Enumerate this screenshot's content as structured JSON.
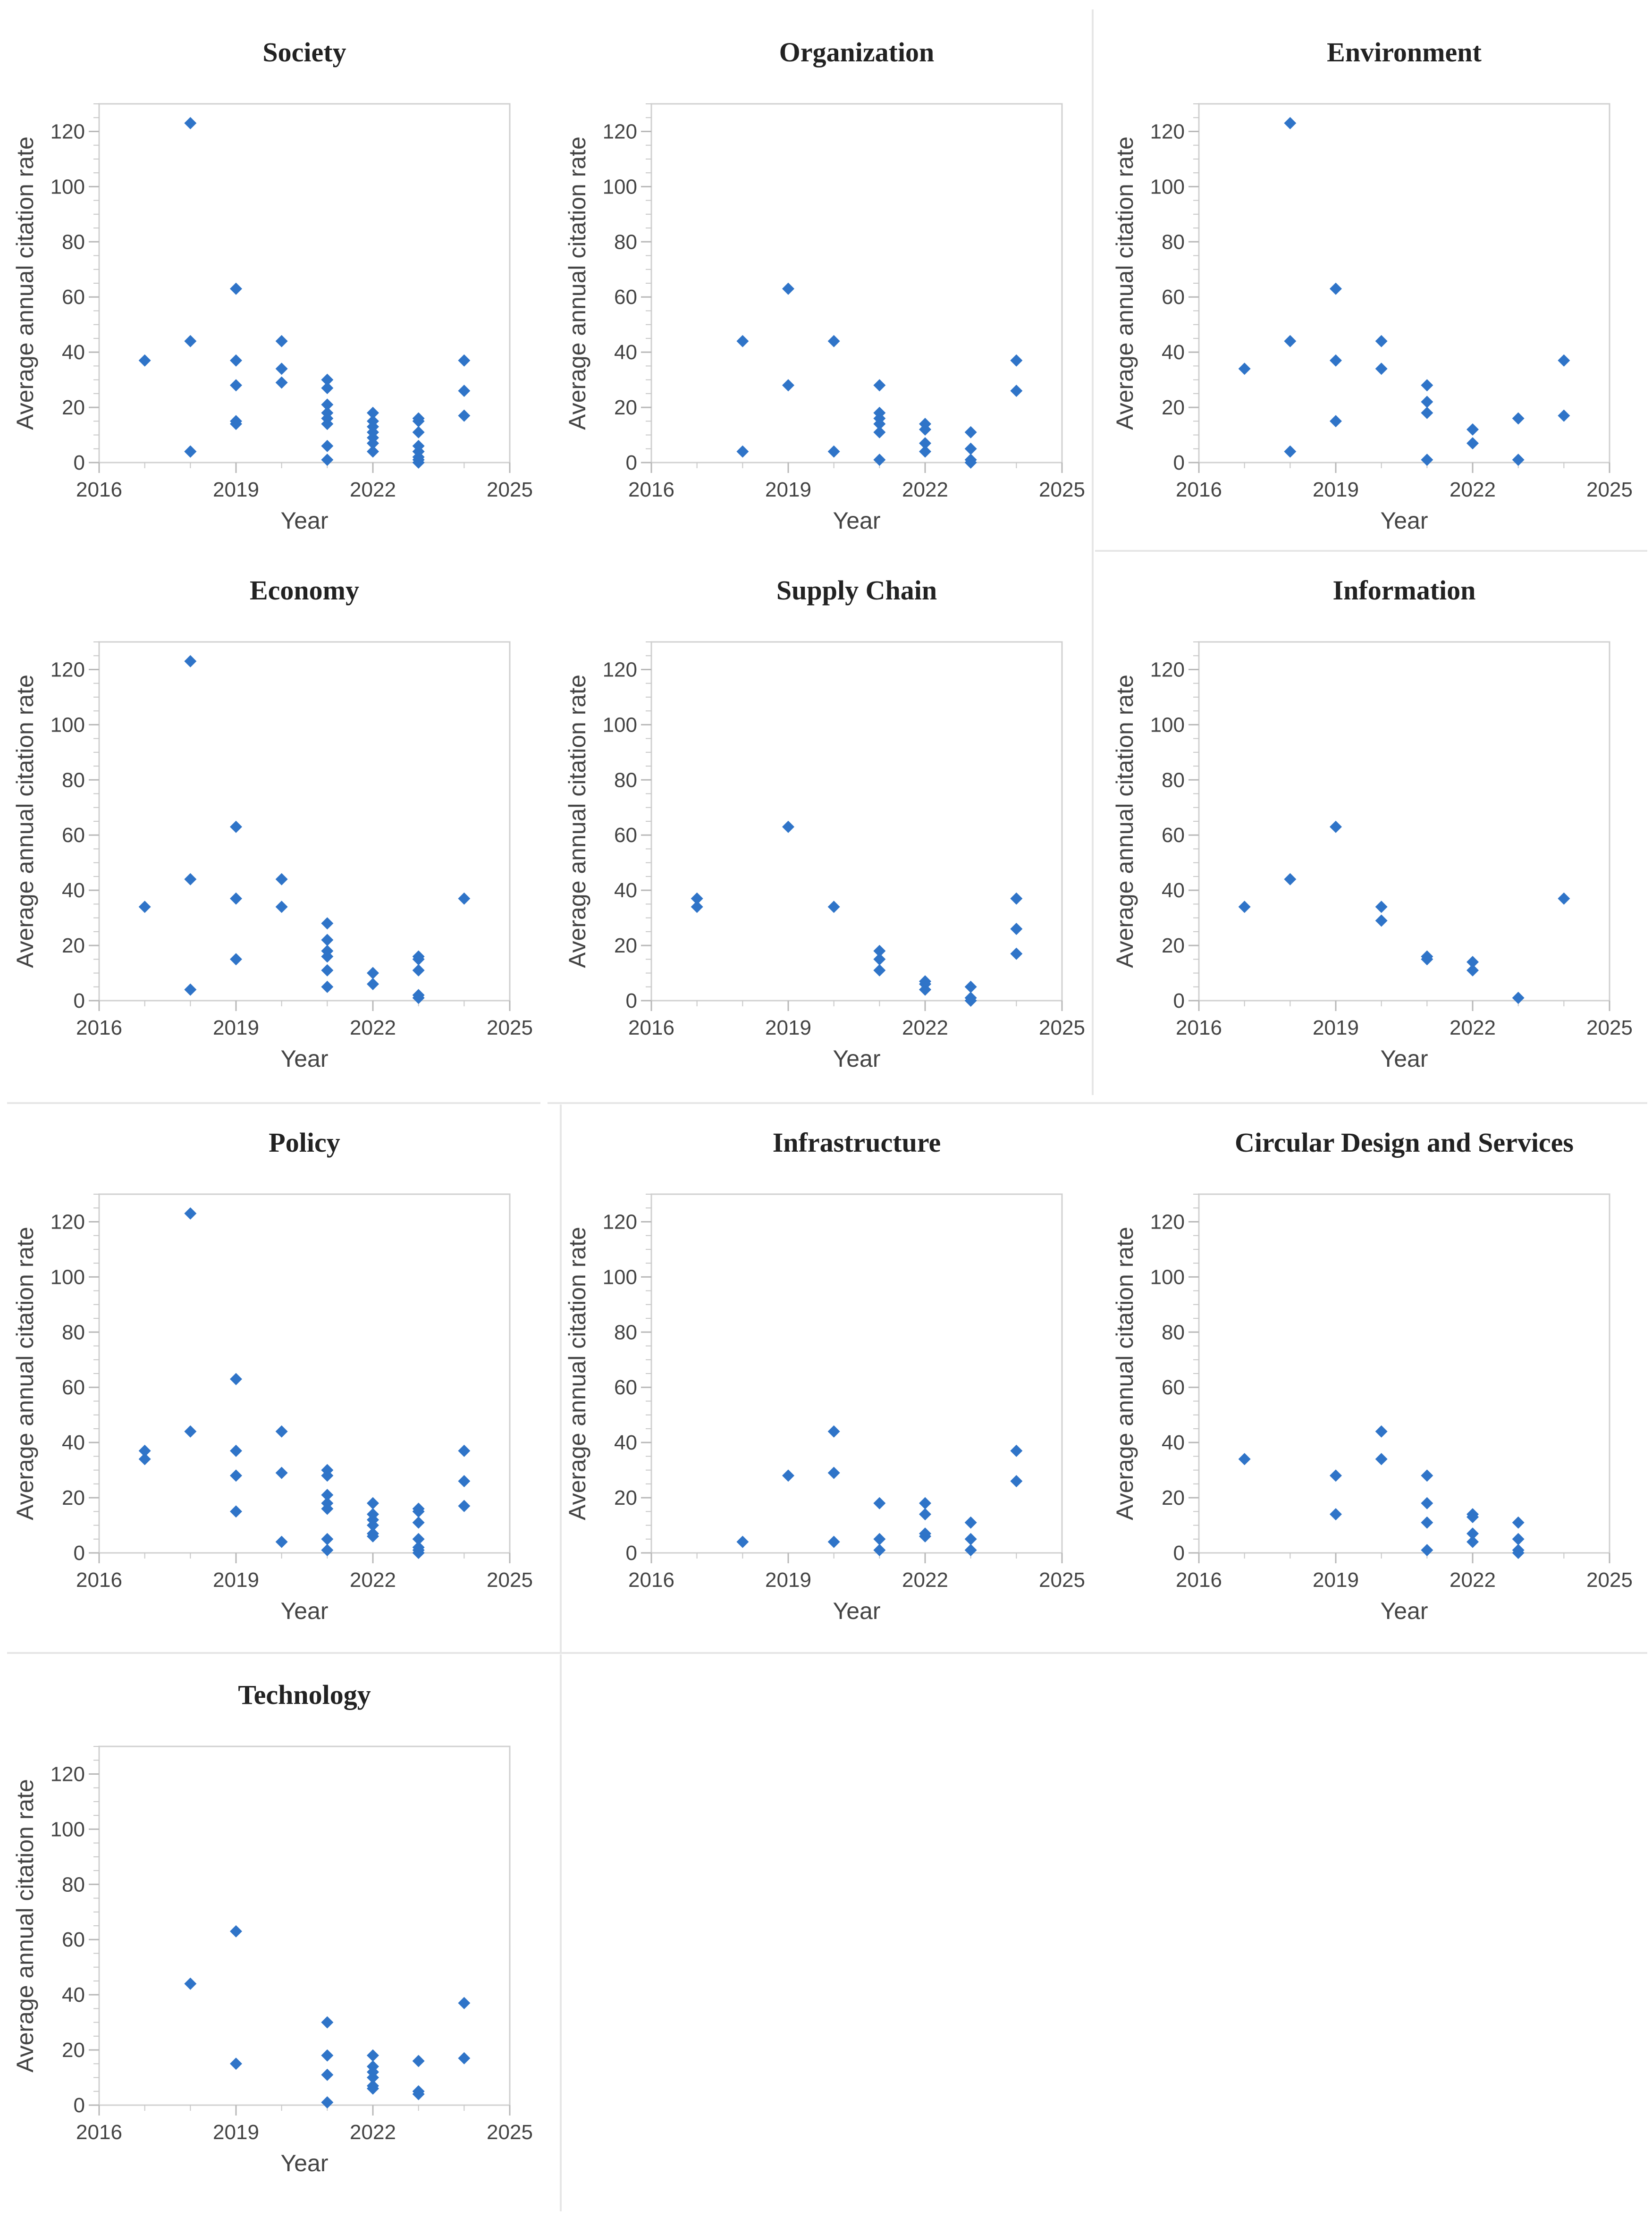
{
  "chart_data": [
    {
      "type": "scatter",
      "title": "Society",
      "xlabel": "Year",
      "ylabel": "Average annual citation rate",
      "xlim": [
        2016,
        2025
      ],
      "ylim": [
        0,
        130
      ],
      "xticks": [
        2016,
        2019,
        2022,
        2025
      ],
      "yticks": [
        0,
        20,
        40,
        60,
        80,
        100,
        120
      ],
      "marker_color": "#2f74c8",
      "points": [
        [
          2017,
          37
        ],
        [
          2018,
          123
        ],
        [
          2018,
          44
        ],
        [
          2018,
          4
        ],
        [
          2018,
          4
        ],
        [
          2019,
          63
        ],
        [
          2019,
          37
        ],
        [
          2019,
          28
        ],
        [
          2019,
          15
        ],
        [
          2019,
          14
        ],
        [
          2020,
          44
        ],
        [
          2020,
          34
        ],
        [
          2020,
          29
        ],
        [
          2021,
          30
        ],
        [
          2021,
          27
        ],
        [
          2021,
          21
        ],
        [
          2021,
          18
        ],
        [
          2021,
          16
        ],
        [
          2021,
          14
        ],
        [
          2021,
          6
        ],
        [
          2021,
          1
        ],
        [
          2022,
          18
        ],
        [
          2022,
          15
        ],
        [
          2022,
          13
        ],
        [
          2022,
          11
        ],
        [
          2022,
          9
        ],
        [
          2022,
          7
        ],
        [
          2022,
          4
        ],
        [
          2023,
          16
        ],
        [
          2023,
          15
        ],
        [
          2023,
          11
        ],
        [
          2023,
          6
        ],
        [
          2023,
          4
        ],
        [
          2023,
          2
        ],
        [
          2023,
          1
        ],
        [
          2023,
          0
        ],
        [
          2024,
          37
        ],
        [
          2024,
          26
        ],
        [
          2024,
          17
        ]
      ]
    },
    {
      "type": "scatter",
      "title": "Organization",
      "xlabel": "Year",
      "ylabel": "Average annual citation rate",
      "xlim": [
        2016,
        2025
      ],
      "ylim": [
        0,
        130
      ],
      "xticks": [
        2016,
        2019,
        2022,
        2025
      ],
      "yticks": [
        0,
        20,
        40,
        60,
        80,
        100,
        120
      ],
      "marker_color": "#2f74c8",
      "points": [
        [
          2018,
          44
        ],
        [
          2018,
          4
        ],
        [
          2019,
          63
        ],
        [
          2019,
          28
        ],
        [
          2020,
          44
        ],
        [
          2020,
          4
        ],
        [
          2021,
          28
        ],
        [
          2021,
          18
        ],
        [
          2021,
          16
        ],
        [
          2021,
          14
        ],
        [
          2021,
          11
        ],
        [
          2021,
          1
        ],
        [
          2022,
          14
        ],
        [
          2022,
          12
        ],
        [
          2022,
          7
        ],
        [
          2022,
          4
        ],
        [
          2023,
          11
        ],
        [
          2023,
          5
        ],
        [
          2023,
          1
        ],
        [
          2023,
          0
        ],
        [
          2024,
          37
        ],
        [
          2024,
          26
        ]
      ]
    },
    {
      "type": "scatter",
      "title": "Environment",
      "xlabel": "Year",
      "ylabel": "Average annual citation rate",
      "xlim": [
        2016,
        2025
      ],
      "ylim": [
        0,
        130
      ],
      "xticks": [
        2016,
        2019,
        2022,
        2025
      ],
      "yticks": [
        0,
        20,
        40,
        60,
        80,
        100,
        120
      ],
      "marker_color": "#2f74c8",
      "points": [
        [
          2017,
          34
        ],
        [
          2018,
          123
        ],
        [
          2018,
          44
        ],
        [
          2018,
          4
        ],
        [
          2019,
          63
        ],
        [
          2019,
          37
        ],
        [
          2019,
          15
        ],
        [
          2020,
          44
        ],
        [
          2020,
          34
        ],
        [
          2021,
          28
        ],
        [
          2021,
          22
        ],
        [
          2021,
          18
        ],
        [
          2021,
          1
        ],
        [
          2022,
          12
        ],
        [
          2022,
          7
        ],
        [
          2023,
          16
        ],
        [
          2023,
          1
        ],
        [
          2024,
          37
        ],
        [
          2024,
          17
        ]
      ]
    },
    {
      "type": "scatter",
      "title": "Economy",
      "xlabel": "Year",
      "ylabel": "Average annual citation rate",
      "xlim": [
        2016,
        2025
      ],
      "ylim": [
        0,
        130
      ],
      "xticks": [
        2016,
        2019,
        2022,
        2025
      ],
      "yticks": [
        0,
        20,
        40,
        60,
        80,
        100,
        120
      ],
      "marker_color": "#2f74c8",
      "points": [
        [
          2017,
          34
        ],
        [
          2018,
          123
        ],
        [
          2018,
          44
        ],
        [
          2018,
          4
        ],
        [
          2019,
          63
        ],
        [
          2019,
          37
        ],
        [
          2019,
          15
        ],
        [
          2020,
          44
        ],
        [
          2020,
          34
        ],
        [
          2021,
          28
        ],
        [
          2021,
          22
        ],
        [
          2021,
          18
        ],
        [
          2021,
          16
        ],
        [
          2021,
          11
        ],
        [
          2021,
          5
        ],
        [
          2022,
          10
        ],
        [
          2022,
          6
        ],
        [
          2023,
          16
        ],
        [
          2023,
          15
        ],
        [
          2023,
          11
        ],
        [
          2023,
          2
        ],
        [
          2023,
          1
        ],
        [
          2024,
          37
        ]
      ]
    },
    {
      "type": "scatter",
      "title": "Supply Chain",
      "xlabel": "Year",
      "ylabel": "Average annual citation rate",
      "xlim": [
        2016,
        2025
      ],
      "ylim": [
        0,
        130
      ],
      "xticks": [
        2016,
        2019,
        2022,
        2025
      ],
      "yticks": [
        0,
        20,
        40,
        60,
        80,
        100,
        120
      ],
      "marker_color": "#2f74c8",
      "points": [
        [
          2017,
          37
        ],
        [
          2017,
          34
        ],
        [
          2019,
          63
        ],
        [
          2020,
          34
        ],
        [
          2021,
          18
        ],
        [
          2021,
          15
        ],
        [
          2021,
          11
        ],
        [
          2022,
          7
        ],
        [
          2022,
          6
        ],
        [
          2022,
          4
        ],
        [
          2023,
          5
        ],
        [
          2023,
          1
        ],
        [
          2023,
          0
        ],
        [
          2024,
          37
        ],
        [
          2024,
          26
        ],
        [
          2024,
          17
        ]
      ]
    },
    {
      "type": "scatter",
      "title": "Information",
      "xlabel": "Year",
      "ylabel": "Average annual citation rate",
      "xlim": [
        2016,
        2025
      ],
      "ylim": [
        0,
        130
      ],
      "xticks": [
        2016,
        2019,
        2022,
        2025
      ],
      "yticks": [
        0,
        20,
        40,
        60,
        80,
        100,
        120
      ],
      "marker_color": "#2f74c8",
      "points": [
        [
          2017,
          34
        ],
        [
          2018,
          44
        ],
        [
          2019,
          63
        ],
        [
          2020,
          34
        ],
        [
          2020,
          29
        ],
        [
          2021,
          16
        ],
        [
          2021,
          15
        ],
        [
          2022,
          14
        ],
        [
          2022,
          11
        ],
        [
          2023,
          1
        ],
        [
          2024,
          37
        ]
      ]
    },
    {
      "type": "scatter",
      "title": "Policy",
      "xlabel": "Year",
      "ylabel": "Average annual citation rate",
      "xlim": [
        2016,
        2025
      ],
      "ylim": [
        0,
        130
      ],
      "xticks": [
        2016,
        2019,
        2022,
        2025
      ],
      "yticks": [
        0,
        20,
        40,
        60,
        80,
        100,
        120
      ],
      "marker_color": "#2f74c8",
      "points": [
        [
          2017,
          37
        ],
        [
          2017,
          34
        ],
        [
          2018,
          123
        ],
        [
          2018,
          44
        ],
        [
          2019,
          63
        ],
        [
          2019,
          37
        ],
        [
          2019,
          28
        ],
        [
          2019,
          15
        ],
        [
          2020,
          44
        ],
        [
          2020,
          29
        ],
        [
          2020,
          4
        ],
        [
          2021,
          30
        ],
        [
          2021,
          28
        ],
        [
          2021,
          21
        ],
        [
          2021,
          18
        ],
        [
          2021,
          16
        ],
        [
          2021,
          5
        ],
        [
          2021,
          1
        ],
        [
          2022,
          18
        ],
        [
          2022,
          14
        ],
        [
          2022,
          12
        ],
        [
          2022,
          10
        ],
        [
          2022,
          7
        ],
        [
          2022,
          6
        ],
        [
          2023,
          16
        ],
        [
          2023,
          15
        ],
        [
          2023,
          11
        ],
        [
          2023,
          5
        ],
        [
          2023,
          2
        ],
        [
          2023,
          1
        ],
        [
          2023,
          0
        ],
        [
          2024,
          37
        ],
        [
          2024,
          26
        ],
        [
          2024,
          17
        ]
      ]
    },
    {
      "type": "scatter",
      "title": "Infrastructure",
      "xlabel": "Year",
      "ylabel": "Average annual citation rate",
      "xlim": [
        2016,
        2025
      ],
      "ylim": [
        0,
        130
      ],
      "xticks": [
        2016,
        2019,
        2022,
        2025
      ],
      "yticks": [
        0,
        20,
        40,
        60,
        80,
        100,
        120
      ],
      "marker_color": "#2f74c8",
      "points": [
        [
          2018,
          4
        ],
        [
          2019,
          28
        ],
        [
          2020,
          44
        ],
        [
          2020,
          29
        ],
        [
          2020,
          4
        ],
        [
          2021,
          18
        ],
        [
          2021,
          5
        ],
        [
          2021,
          1
        ],
        [
          2022,
          18
        ],
        [
          2022,
          14
        ],
        [
          2022,
          7
        ],
        [
          2022,
          6
        ],
        [
          2023,
          11
        ],
        [
          2023,
          5
        ],
        [
          2023,
          1
        ],
        [
          2024,
          37
        ],
        [
          2024,
          26
        ]
      ]
    },
    {
      "type": "scatter",
      "title": "Circular Design and Services",
      "xlabel": "Year",
      "ylabel": "Average annual citation rate",
      "xlim": [
        2016,
        2025
      ],
      "ylim": [
        0,
        130
      ],
      "xticks": [
        2016,
        2019,
        2022,
        2025
      ],
      "yticks": [
        0,
        20,
        40,
        60,
        80,
        100,
        120
      ],
      "marker_color": "#2f74c8",
      "points": [
        [
          2017,
          34
        ],
        [
          2019,
          28
        ],
        [
          2019,
          14
        ],
        [
          2020,
          44
        ],
        [
          2020,
          34
        ],
        [
          2021,
          28
        ],
        [
          2021,
          18
        ],
        [
          2021,
          11
        ],
        [
          2021,
          1
        ],
        [
          2022,
          14
        ],
        [
          2022,
          13
        ],
        [
          2022,
          7
        ],
        [
          2022,
          4
        ],
        [
          2023,
          11
        ],
        [
          2023,
          5
        ],
        [
          2023,
          1
        ],
        [
          2023,
          0
        ]
      ]
    },
    {
      "type": "scatter",
      "title": "Technology",
      "xlabel": "Year",
      "ylabel": "Average annual citation rate",
      "xlim": [
        2016,
        2025
      ],
      "ylim": [
        0,
        130
      ],
      "xticks": [
        2016,
        2019,
        2022,
        2025
      ],
      "yticks": [
        0,
        20,
        40,
        60,
        80,
        100,
        120
      ],
      "marker_color": "#2f74c8",
      "points": [
        [
          2018,
          44
        ],
        [
          2019,
          63
        ],
        [
          2019,
          15
        ],
        [
          2021,
          30
        ],
        [
          2021,
          18
        ],
        [
          2021,
          11
        ],
        [
          2021,
          1
        ],
        [
          2022,
          18
        ],
        [
          2022,
          14
        ],
        [
          2022,
          12
        ],
        [
          2022,
          10
        ],
        [
          2022,
          7
        ],
        [
          2022,
          6
        ],
        [
          2023,
          16
        ],
        [
          2023,
          5
        ],
        [
          2023,
          4
        ],
        [
          2024,
          37
        ],
        [
          2024,
          17
        ]
      ]
    }
  ]
}
